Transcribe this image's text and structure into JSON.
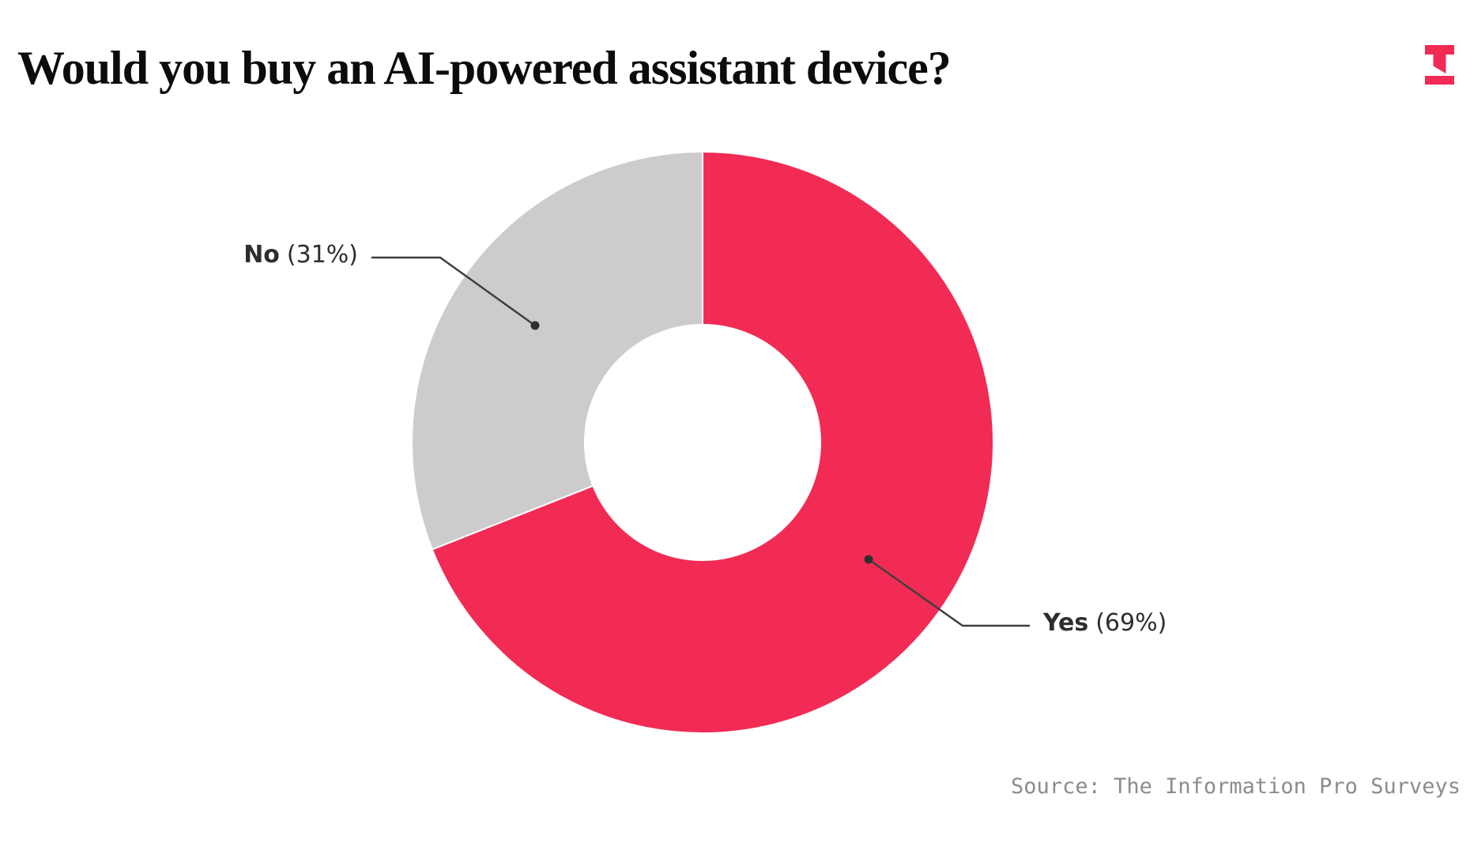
{
  "page": {
    "title": "Would you buy an AI-powered assistant device?",
    "source": "Source: The Information Pro Surveys",
    "brand_color": "#f22b54"
  },
  "chart_data": {
    "type": "pie",
    "subtype": "donut",
    "title": "Would you buy an AI-powered assistant device?",
    "categories": [
      "Yes",
      "No"
    ],
    "values": [
      69,
      31
    ],
    "unit": "%",
    "segment_colors": [
      "#f22b54",
      "#cccccc"
    ],
    "labels": [
      {
        "name": "Yes",
        "pct": "(69%)"
      },
      {
        "name": "No",
        "pct": "(31%)"
      }
    ],
    "legend": "none",
    "label_style": "direct labels with leader lines and dots",
    "start_angle_deg": 0,
    "direction": "clockwise",
    "inner_radius_ratio": 0.405,
    "source": "Source: The Information Pro Surveys"
  }
}
